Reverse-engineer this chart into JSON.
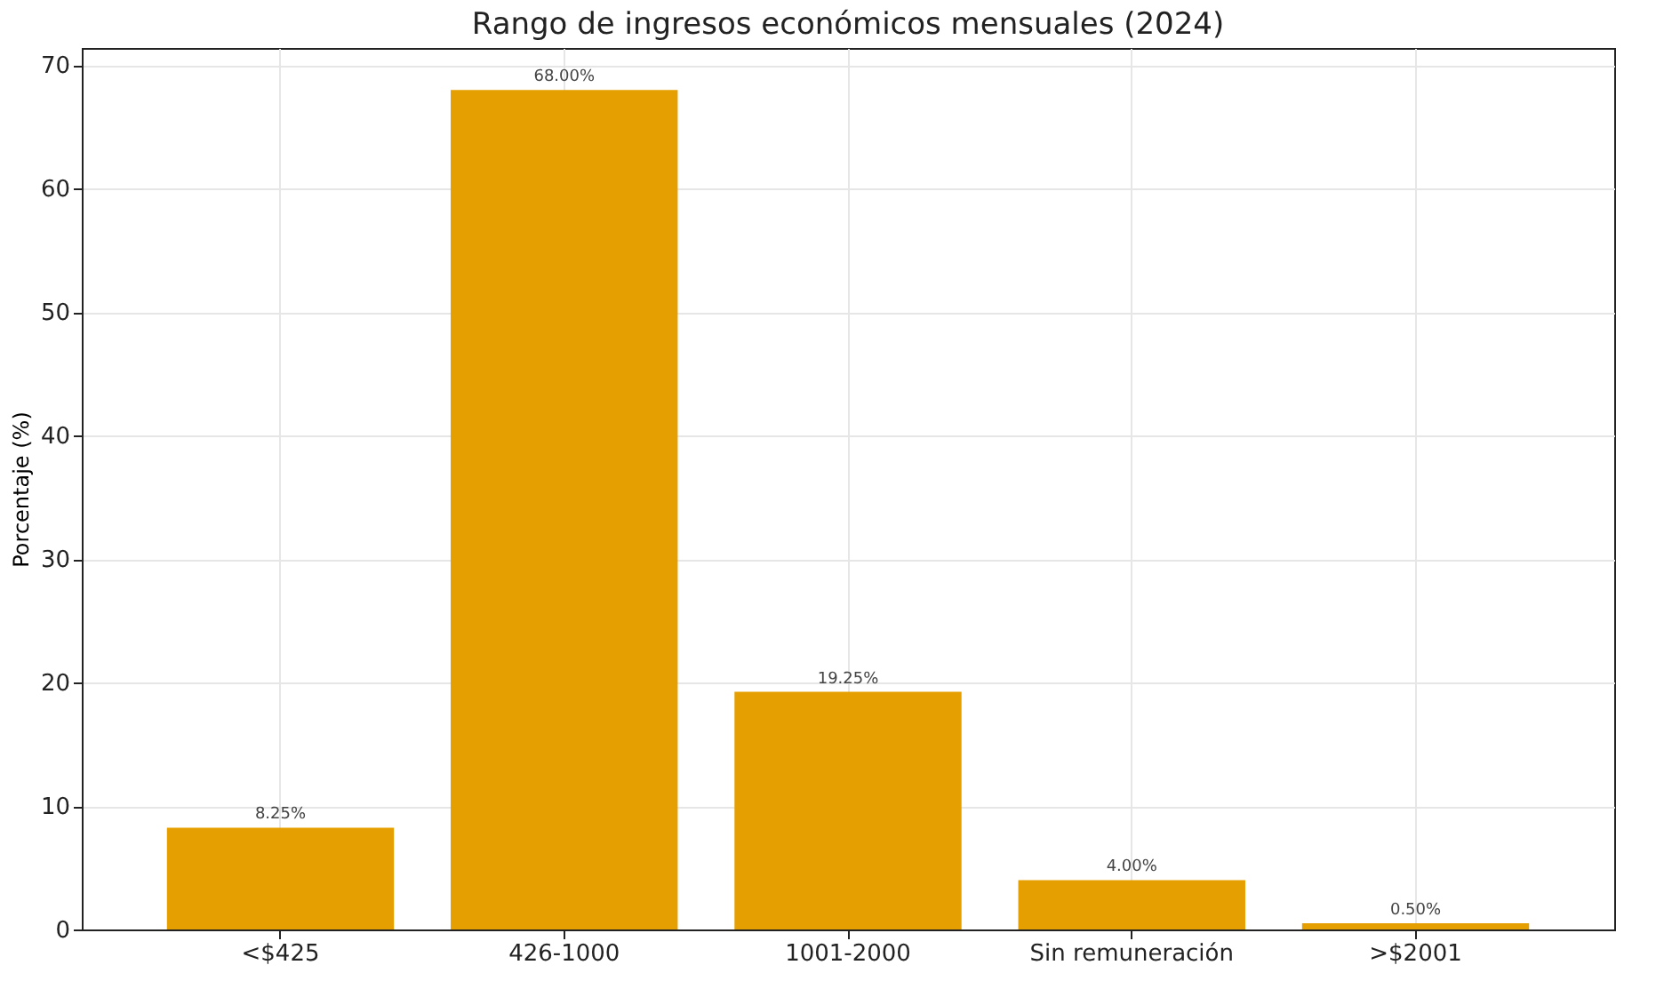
{
  "chart_data": {
    "type": "bar",
    "title": "Rango de ingresos económicos mensuales (2024)",
    "ylabel": "Porcentaje (%)",
    "categories": [
      "<$425",
      "426-1000",
      "1001-2000",
      "Sin remuneración",
      ">$2001"
    ],
    "values": [
      8.25,
      68.0,
      19.25,
      4.0,
      0.5
    ],
    "value_labels": [
      "8.25%",
      "68.00%",
      "19.25%",
      "4.00%",
      "0.50%"
    ],
    "color": "#e69f00",
    "ylim": [
      0,
      71.4
    ],
    "yticks": [
      0,
      10,
      20,
      30,
      40,
      50,
      60,
      70
    ],
    "grid": true
  }
}
